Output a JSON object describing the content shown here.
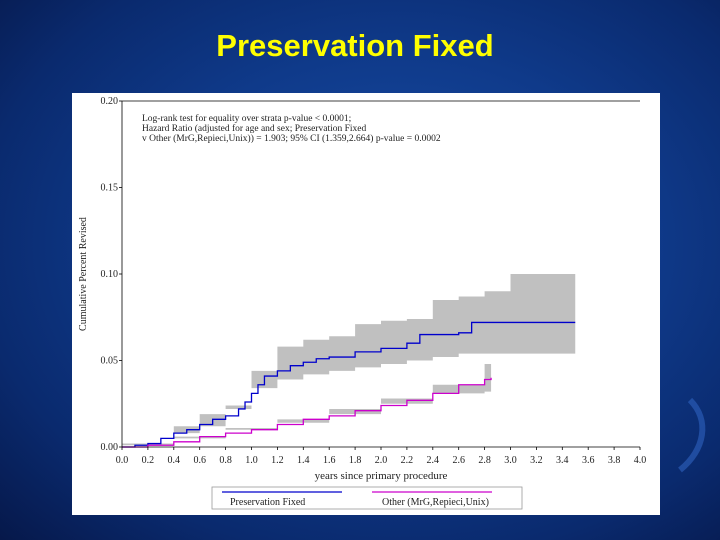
{
  "slide": {
    "title": "Preservation Fixed"
  },
  "colors": {
    "background": "#0f3a8a",
    "title": "#ffff00",
    "series_preservation": "#0000cc",
    "series_other": "#cc00cc",
    "ci_band": "#c0c0c0"
  },
  "chart_data": {
    "type": "line",
    "title": "",
    "xlabel": "years since primary procedure",
    "ylabel": "Cumulative Percent Revised",
    "xlim": [
      0,
      4.0
    ],
    "ylim": [
      0,
      0.2
    ],
    "x_ticks": [
      "0.0",
      "0.2",
      "0.4",
      "0.6",
      "0.8",
      "1.0",
      "1.2",
      "1.4",
      "1.6",
      "1.8",
      "2.0",
      "2.2",
      "2.4",
      "2.6",
      "2.8",
      "3.0",
      "3.2",
      "3.4",
      "3.6",
      "3.8",
      "4.0"
    ],
    "y_ticks": [
      "0.00",
      "0.05",
      "0.10",
      "0.15",
      "0.20"
    ],
    "grid": false,
    "legend_placement": "bottom",
    "annotation": [
      "Log-rank test for equality over strata p-value < 0.0001;",
      "Hazard Ratio (adjusted for age and sex; Preservation Fixed",
      "v Other (MrG,Repieci,Unix)) = 1.903; 95% CI (1.359,2.664) p-value = 0.0002"
    ],
    "series": [
      {
        "name": "Preservation Fixed",
        "points": [
          [
            0,
            0
          ],
          [
            0.1,
            0.001
          ],
          [
            0.2,
            0.002
          ],
          [
            0.3,
            0.005
          ],
          [
            0.4,
            0.008
          ],
          [
            0.5,
            0.01
          ],
          [
            0.6,
            0.013
          ],
          [
            0.7,
            0.016
          ],
          [
            0.8,
            0.018
          ],
          [
            0.9,
            0.022
          ],
          [
            0.95,
            0.026
          ],
          [
            1.0,
            0.031
          ],
          [
            1.05,
            0.036
          ],
          [
            1.1,
            0.041
          ],
          [
            1.2,
            0.044
          ],
          [
            1.3,
            0.047
          ],
          [
            1.4,
            0.049
          ],
          [
            1.5,
            0.051
          ],
          [
            1.6,
            0.052
          ],
          [
            1.8,
            0.055
          ],
          [
            2.0,
            0.057
          ],
          [
            2.2,
            0.06
          ],
          [
            2.3,
            0.065
          ],
          [
            2.6,
            0.066
          ],
          [
            2.7,
            0.072
          ],
          [
            3.5,
            0.072
          ]
        ],
        "ci_lower": [
          [
            0,
            0
          ],
          [
            0.2,
            0.001
          ],
          [
            0.4,
            0.004
          ],
          [
            0.6,
            0.008
          ],
          [
            0.8,
            0.012
          ],
          [
            1.0,
            0.022
          ],
          [
            1.2,
            0.034
          ],
          [
            1.4,
            0.039
          ],
          [
            1.6,
            0.042
          ],
          [
            1.8,
            0.044
          ],
          [
            2.0,
            0.046
          ],
          [
            2.2,
            0.048
          ],
          [
            2.4,
            0.05
          ],
          [
            2.6,
            0.052
          ],
          [
            2.8,
            0.054
          ],
          [
            3.0,
            0.054
          ],
          [
            3.5,
            0.054
          ]
        ],
        "ci_upper": [
          [
            0,
            0.001
          ],
          [
            0.2,
            0.004
          ],
          [
            0.4,
            0.012
          ],
          [
            0.6,
            0.019
          ],
          [
            0.8,
            0.024
          ],
          [
            1.0,
            0.044
          ],
          [
            1.2,
            0.058
          ],
          [
            1.4,
            0.062
          ],
          [
            1.6,
            0.064
          ],
          [
            1.8,
            0.071
          ],
          [
            2.0,
            0.073
          ],
          [
            2.2,
            0.074
          ],
          [
            2.4,
            0.085
          ],
          [
            2.6,
            0.087
          ],
          [
            2.8,
            0.09
          ],
          [
            3.0,
            0.1
          ],
          [
            3.5,
            0.1
          ]
        ]
      },
      {
        "name": "Other (MrG,Repieci,Unix)",
        "points": [
          [
            0,
            0
          ],
          [
            0.2,
            0.001
          ],
          [
            0.4,
            0.003
          ],
          [
            0.6,
            0.006
          ],
          [
            0.8,
            0.008
          ],
          [
            1.0,
            0.01
          ],
          [
            1.2,
            0.013
          ],
          [
            1.4,
            0.016
          ],
          [
            1.6,
            0.018
          ],
          [
            1.8,
            0.021
          ],
          [
            2.0,
            0.024
          ],
          [
            2.2,
            0.027
          ],
          [
            2.4,
            0.031
          ],
          [
            2.6,
            0.036
          ],
          [
            2.8,
            0.039
          ],
          [
            2.85,
            0.04
          ]
        ],
        "ci_lower": [
          [
            0,
            0
          ],
          [
            0.4,
            0.002
          ],
          [
            0.8,
            0.006
          ],
          [
            1.2,
            0.01
          ],
          [
            1.6,
            0.014
          ],
          [
            2.0,
            0.019
          ],
          [
            2.4,
            0.025
          ],
          [
            2.8,
            0.031
          ],
          [
            2.85,
            0.032
          ]
        ],
        "ci_upper": [
          [
            0,
            0.001
          ],
          [
            0.4,
            0.005
          ],
          [
            0.8,
            0.011
          ],
          [
            1.2,
            0.016
          ],
          [
            1.6,
            0.022
          ],
          [
            2.0,
            0.028
          ],
          [
            2.4,
            0.036
          ],
          [
            2.8,
            0.048
          ],
          [
            2.85,
            0.049
          ]
        ]
      }
    ]
  }
}
